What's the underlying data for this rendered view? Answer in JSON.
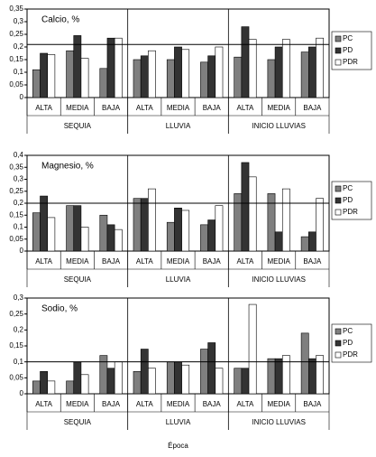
{
  "chart_data": [
    {
      "type": "bar",
      "title": "Calcio, %",
      "groups": [
        "SEQUIA",
        "LLUVIA",
        "INICIO LLUVIAS"
      ],
      "categories": [
        "ALTA",
        "MEDIA",
        "BAJA",
        "ALTA",
        "MEDIA",
        "BAJA",
        "ALTA",
        "MEDIA",
        "BAJA"
      ],
      "series": [
        {
          "name": "PC",
          "color": "#7f7f7f",
          "values": [
            0.11,
            0.185,
            0.115,
            0.15,
            0.15,
            0.14,
            0.16,
            0.15,
            0.18
          ]
        },
        {
          "name": "PD",
          "color": "#333333",
          "values": [
            0.175,
            0.245,
            0.235,
            0.165,
            0.2,
            0.165,
            0.28,
            0.2,
            0.2
          ]
        },
        {
          "name": "PDR",
          "color": "#ffffff",
          "values": [
            0.17,
            0.155,
            0.235,
            0.185,
            0.19,
            0.2,
            0.23,
            0.23,
            0.235
          ]
        }
      ],
      "reference_line": 0.21,
      "ylim": [
        0,
        0.35
      ],
      "yticks": [
        0,
        {
          "value": 0.05,
          "label": "0,05"
        },
        {
          "value": 0.1,
          "label": "0,1"
        },
        {
          "value": 0.15,
          "label": "0,15"
        },
        {
          "value": 0.2,
          "label": "0,2"
        },
        {
          "value": 0.25,
          "label": "0,25"
        },
        {
          "value": 0.3,
          "label": "0,3"
        },
        {
          "value": 0.35,
          "label": "0,35"
        }
      ]
    },
    {
      "type": "bar",
      "title": "Magnesio, %",
      "groups": [
        "SEQUIA",
        "LLUVIA",
        "INICIO LLUVIAS"
      ],
      "categories": [
        "ALTA",
        "MEDIA",
        "BAJA",
        "ALTA",
        "MEDIA",
        "BAJA",
        "ALTA",
        "MEDIA",
        "BAJA"
      ],
      "series": [
        {
          "name": "PC",
          "color": "#7f7f7f",
          "values": [
            0.16,
            0.19,
            0.15,
            0.22,
            0.12,
            0.11,
            0.24,
            0.24,
            0.06
          ]
        },
        {
          "name": "PD",
          "color": "#333333",
          "values": [
            0.23,
            0.19,
            0.11,
            0.22,
            0.18,
            0.13,
            0.37,
            0.08,
            0.08
          ]
        },
        {
          "name": "PDR",
          "color": "#ffffff",
          "values": [
            0.14,
            0.1,
            0.09,
            0.26,
            0.17,
            0.19,
            0.31,
            0.26,
            0.22
          ]
        }
      ],
      "reference_line": 0.2,
      "ylim": [
        0,
        0.4
      ],
      "yticks": [
        0,
        {
          "value": 0.05,
          "label": "0,05"
        },
        {
          "value": 0.1,
          "label": "0,1"
        },
        {
          "value": 0.15,
          "label": "0,15"
        },
        {
          "value": 0.2,
          "label": "0,2"
        },
        {
          "value": 0.25,
          "label": "0,25"
        },
        {
          "value": 0.3,
          "label": "0,3"
        },
        {
          "value": 0.35,
          "label": "0,35"
        },
        {
          "value": 0.4,
          "label": "0,4"
        }
      ]
    },
    {
      "type": "bar",
      "title": "Sodio, %",
      "groups": [
        "SEQUIA",
        "LLUVIA",
        "INICIO LLUVIAS"
      ],
      "categories": [
        "ALTA",
        "MEDIA",
        "BAJA",
        "ALTA",
        "MEDIA",
        "BAJA",
        "ALTA",
        "MEDIA",
        "BAJA"
      ],
      "series": [
        {
          "name": "PC",
          "color": "#7f7f7f",
          "values": [
            0.04,
            0.04,
            0.12,
            0.07,
            0.1,
            0.14,
            0.08,
            0.11,
            0.19
          ]
        },
        {
          "name": "PD",
          "color": "#333333",
          "values": [
            0.07,
            0.1,
            0.08,
            0.14,
            0.1,
            0.16,
            0.08,
            0.11,
            0.11
          ]
        },
        {
          "name": "PDR",
          "color": "#ffffff",
          "values": [
            0.04,
            0.06,
            0.1,
            0.08,
            0.09,
            0.08,
            0.28,
            0.12,
            0.12
          ]
        }
      ],
      "reference_line": 0.1,
      "ylim": [
        0,
        0.3
      ],
      "x_label": "Época",
      "yticks": [
        0,
        {
          "value": 0.05,
          "label": "0,05"
        },
        {
          "value": 0.1,
          "label": "0,1"
        },
        {
          "value": 0.15,
          "label": "0,15"
        },
        {
          "value": 0.2,
          "label": "0,2"
        },
        {
          "value": 0.25,
          "label": "0,25"
        },
        {
          "value": 0.3,
          "label": "0,3"
        }
      ]
    }
  ]
}
